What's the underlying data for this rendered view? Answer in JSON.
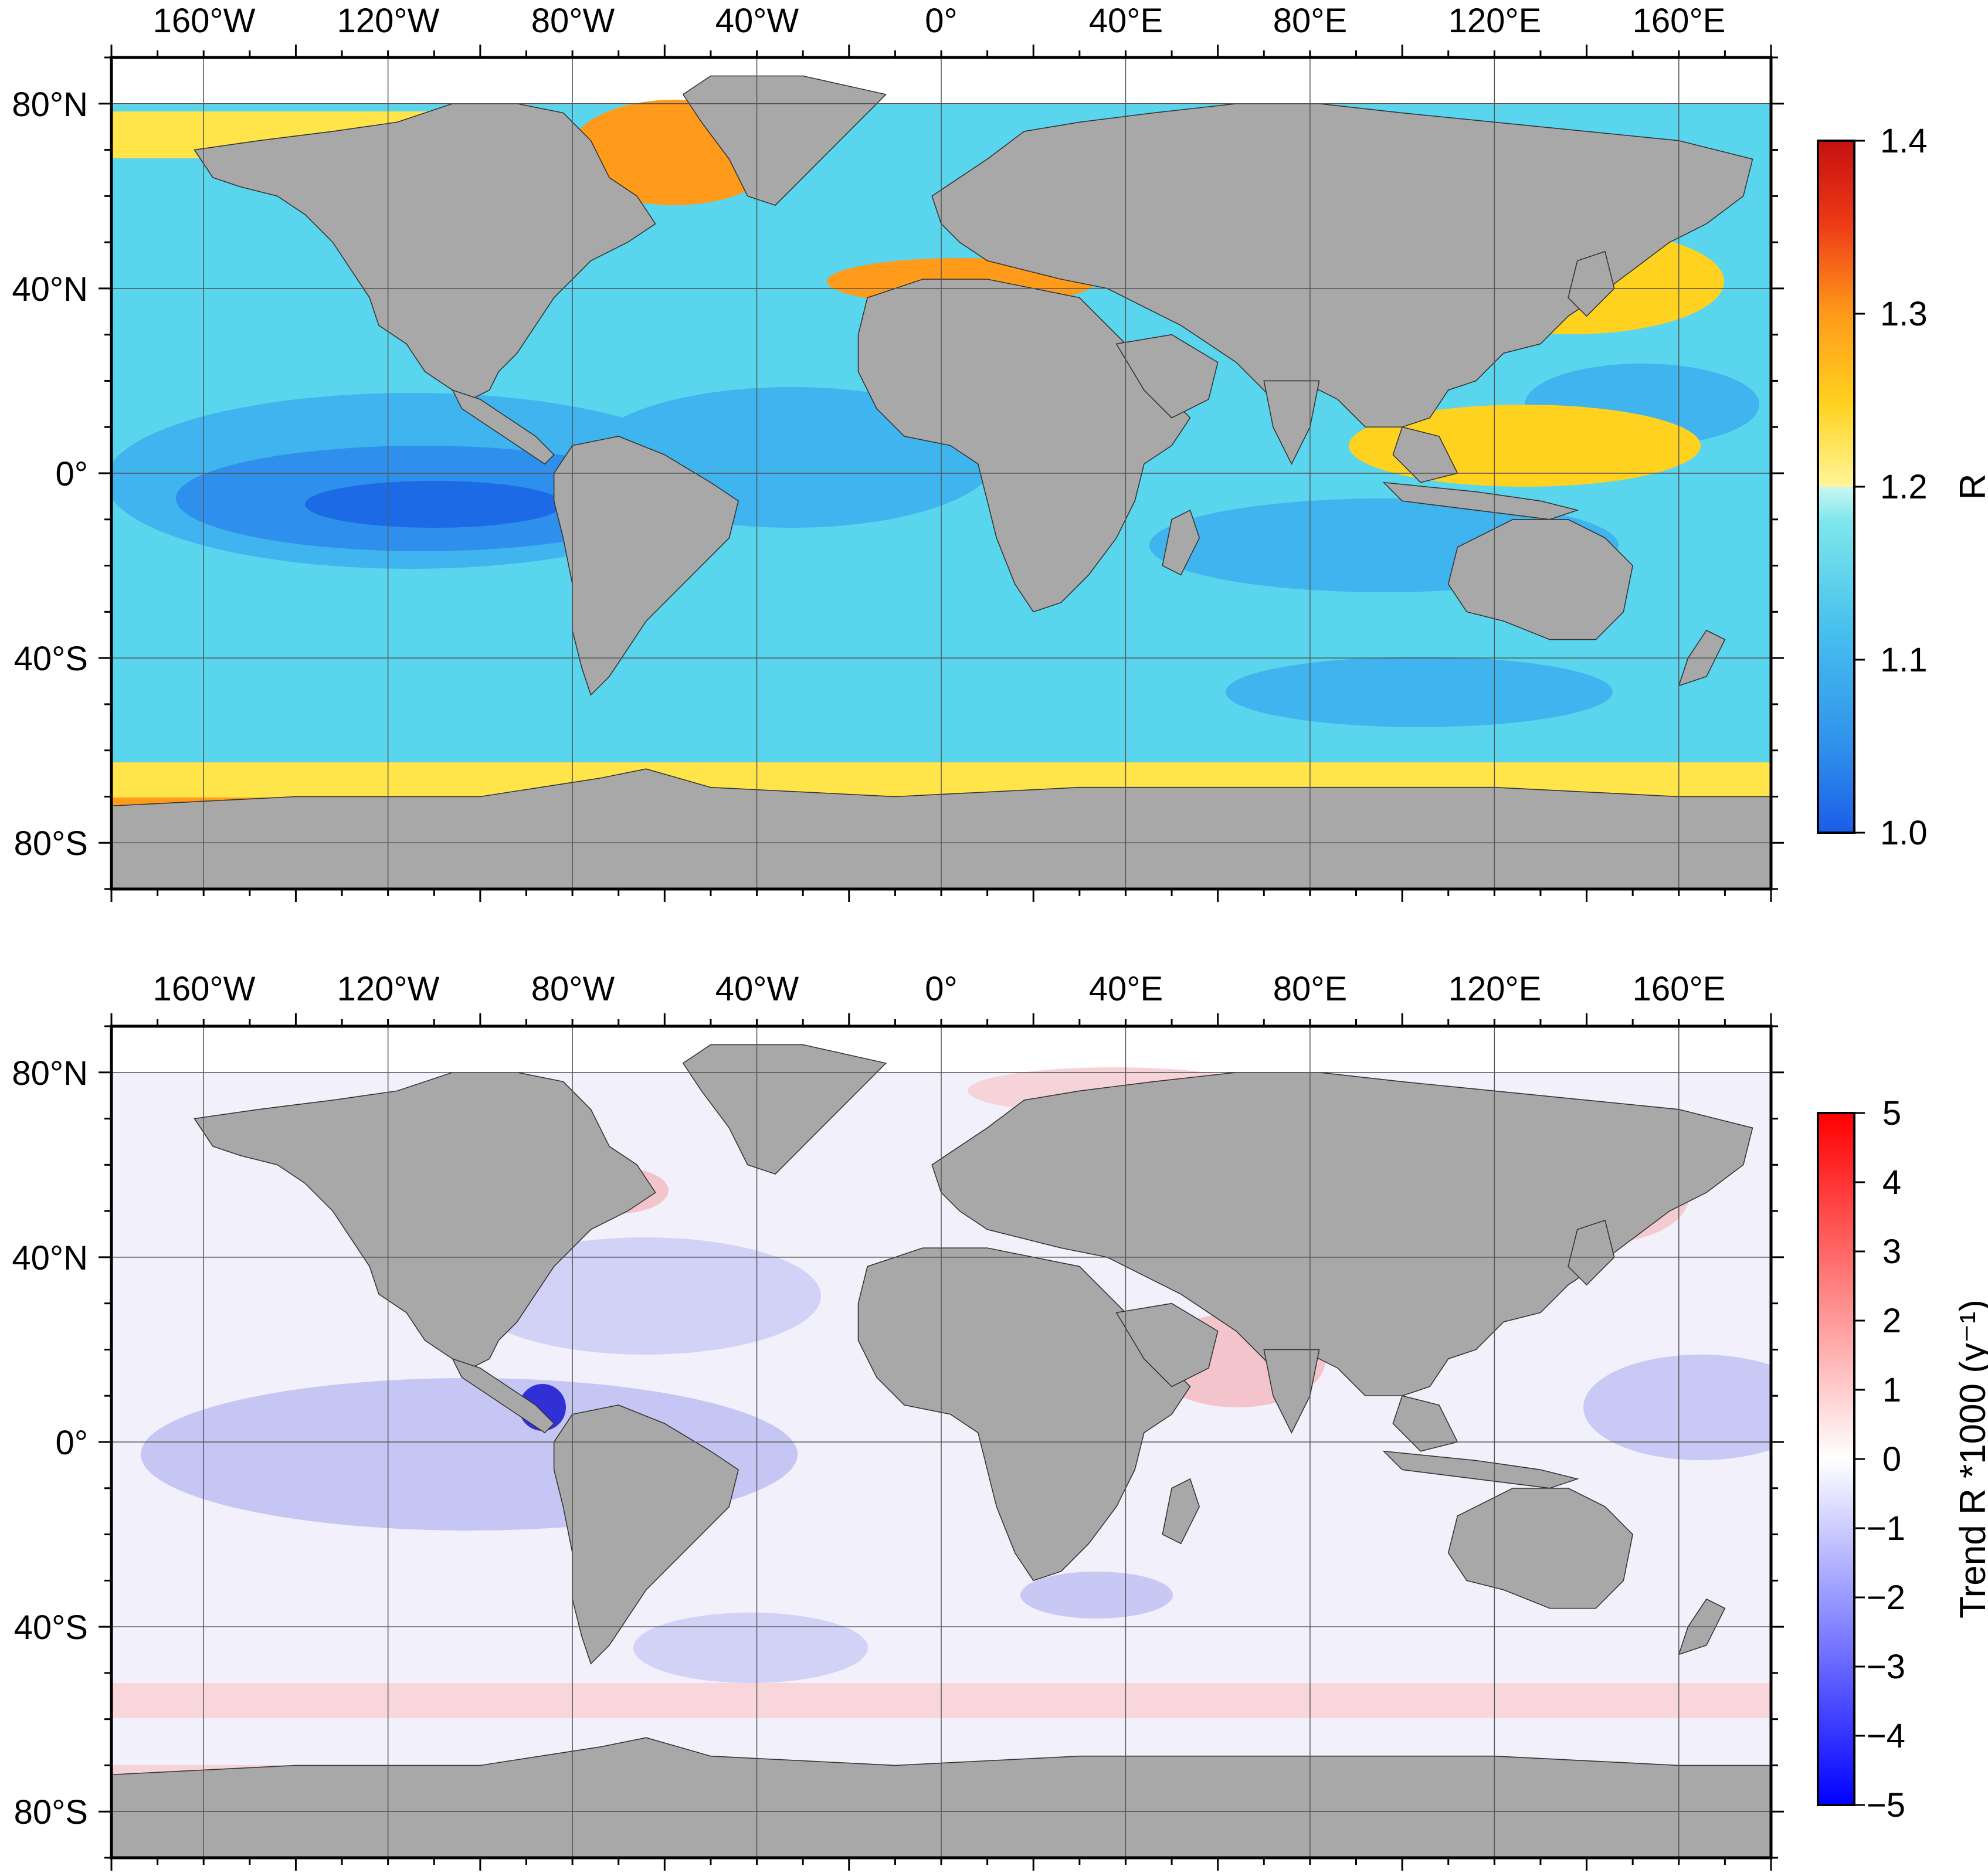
{
  "lon_labels": [
    "160°W",
    "120°W",
    "80°W",
    "40°W",
    "0°",
    "40°E",
    "80°E",
    "120°E",
    "160°E"
  ],
  "lat_labels": [
    "80°N",
    "40°N",
    "0°",
    "40°S",
    "80°S"
  ],
  "colors": {
    "land": "#a8a8a8",
    "gridline": "#555555",
    "coast": "#333333"
  },
  "panels": [
    {
      "id": "top",
      "variable": "R",
      "colorbar": {
        "title": "R",
        "ticks": [
          "1.4",
          "1.3",
          "1.2",
          "1.1",
          "1.0"
        ],
        "range": [
          1.0,
          1.4
        ],
        "stops": [
          "#1b5de8",
          "#2f8fec",
          "#48c2ee",
          "#7fe6ec",
          "#bff5f0",
          "#fff36b",
          "#ffd21f",
          "#ff9a1a",
          "#ee3a17",
          "#c61010"
        ]
      }
    },
    {
      "id": "bottom",
      "variable": "Trend R *1000 (y⁻¹)",
      "colorbar": {
        "title": "Trend R *1000 (y⁻¹)",
        "ticks": [
          "5",
          "4",
          "3",
          "2",
          "1",
          "0",
          "−1",
          "−2",
          "−3",
          "−4",
          "−5"
        ],
        "range": [
          -5,
          5
        ],
        "stops": [
          "#0000ff",
          "#6c6cff",
          "#c2c2ff",
          "#ffffff",
          "#ffc2c2",
          "#ff6c6c",
          "#ff0000"
        ]
      }
    }
  ]
}
